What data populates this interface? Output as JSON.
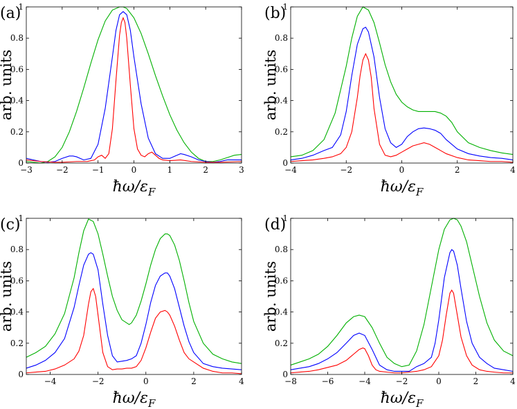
{
  "chart_data": [
    {
      "type": "line",
      "panel": "(a)",
      "xlabel": "ħω/ε_F",
      "ylabel": "arb. units",
      "xlim": [
        -3,
        3
      ],
      "ylim": [
        0,
        1
      ],
      "xticks": [
        "−3",
        "−2",
        "−1",
        "0",
        "1",
        "2",
        "3"
      ],
      "yticks": [
        "0",
        "0.2",
        "0.4",
        "0.6",
        "0.8",
        "1"
      ],
      "grid": false,
      "series": [
        {
          "color": "#00b000",
          "x": [
            -3,
            -2.8,
            -2.6,
            -2.4,
            -2.2,
            -2.0,
            -1.8,
            -1.6,
            -1.4,
            -1.2,
            -1.0,
            -0.8,
            -0.6,
            -0.4,
            -0.3,
            -0.2,
            0,
            0.2,
            0.4,
            0.6,
            0.8,
            1.0,
            1.2,
            1.4,
            1.6,
            1.8,
            2.0,
            2.2,
            2.4,
            2.6,
            2.8,
            3.0
          ],
          "y": [
            0.01,
            0.005,
            0.0,
            0.01,
            0.04,
            0.1,
            0.2,
            0.33,
            0.48,
            0.64,
            0.79,
            0.91,
            0.98,
            1.0,
            1.0,
            0.99,
            0.93,
            0.83,
            0.7,
            0.56,
            0.43,
            0.31,
            0.21,
            0.13,
            0.07,
            0.03,
            0.01,
            0.01,
            0.02,
            0.035,
            0.05,
            0.055
          ]
        },
        {
          "color": "#0000ff",
          "x": [
            -3,
            -2.8,
            -2.6,
            -2.4,
            -2.2,
            -2.0,
            -1.8,
            -1.7,
            -1.6,
            -1.4,
            -1.2,
            -1.0,
            -0.8,
            -0.6,
            -0.5,
            -0.4,
            -0.3,
            -0.2,
            -0.1,
            0,
            0.2,
            0.4,
            0.6,
            0.8,
            1.0,
            1.2,
            1.3,
            1.4,
            1.6,
            1.8,
            2.0,
            2.2,
            2.4,
            2.6,
            2.8,
            3.0
          ],
          "y": [
            0.03,
            0.02,
            0.01,
            0.005,
            0.01,
            0.03,
            0.045,
            0.045,
            0.04,
            0.02,
            0.03,
            0.12,
            0.35,
            0.68,
            0.85,
            0.95,
            0.97,
            0.95,
            0.85,
            0.68,
            0.38,
            0.16,
            0.06,
            0.03,
            0.03,
            0.05,
            0.06,
            0.055,
            0.04,
            0.02,
            0.01,
            0.005,
            0.01,
            0.02,
            0.02,
            0.02
          ]
        },
        {
          "color": "#ff0000",
          "x": [
            -3,
            -2.6,
            -2.2,
            -2.0,
            -1.6,
            -1.3,
            -1.1,
            -1.0,
            -0.9,
            -0.8,
            -0.7,
            -0.6,
            -0.5,
            -0.4,
            -0.35,
            -0.3,
            -0.25,
            -0.2,
            -0.1,
            0,
            0.1,
            0.2,
            0.3,
            0.4,
            0.5,
            0.6,
            0.7,
            0.8,
            1.0,
            1.3,
            1.6,
            2.0,
            2.4,
            3.0
          ],
          "y": [
            0.02,
            0.01,
            0.005,
            0.005,
            0.01,
            0.01,
            0.02,
            0.04,
            0.05,
            0.03,
            0.06,
            0.22,
            0.53,
            0.82,
            0.9,
            0.93,
            0.9,
            0.8,
            0.5,
            0.22,
            0.09,
            0.05,
            0.04,
            0.06,
            0.07,
            0.05,
            0.03,
            0.02,
            0.015,
            0.02,
            0.01,
            0.005,
            0.005,
            0.01
          ]
        }
      ]
    },
    {
      "type": "line",
      "panel": "(b)",
      "xlabel": "ħω/ε_F",
      "ylabel": "arb. units",
      "xlim": [
        -4,
        4
      ],
      "ylim": [
        0,
        1
      ],
      "xticks": [
        "−4",
        "−2",
        "0",
        "2",
        "4"
      ],
      "yticks": [
        "0",
        "0.2",
        "0.4",
        "0.6",
        "0.8",
        "1"
      ],
      "grid": false,
      "series": [
        {
          "color": "#00b000",
          "x": [
            -4,
            -3.6,
            -3.2,
            -2.8,
            -2.4,
            -2.0,
            -1.8,
            -1.6,
            -1.4,
            -1.2,
            -1.0,
            -0.8,
            -0.6,
            -0.4,
            -0.2,
            0,
            0.2,
            0.4,
            0.6,
            0.8,
            1.0,
            1.2,
            1.4,
            1.6,
            1.8,
            2.0,
            2.4,
            2.8,
            3.2,
            3.6,
            4.0
          ],
          "y": [
            0.04,
            0.05,
            0.08,
            0.15,
            0.32,
            0.62,
            0.8,
            0.94,
            1.0,
            0.98,
            0.9,
            0.77,
            0.63,
            0.52,
            0.44,
            0.39,
            0.36,
            0.34,
            0.33,
            0.33,
            0.33,
            0.33,
            0.32,
            0.3,
            0.26,
            0.2,
            0.13,
            0.1,
            0.08,
            0.065,
            0.055
          ]
        },
        {
          "color": "#0000ff",
          "x": [
            -4,
            -3.6,
            -3.2,
            -2.8,
            -2.5,
            -2.2,
            -2.0,
            -1.8,
            -1.6,
            -1.4,
            -1.3,
            -1.2,
            -1.0,
            -0.8,
            -0.6,
            -0.4,
            -0.2,
            0,
            0.2,
            0.4,
            0.6,
            0.8,
            1.0,
            1.2,
            1.4,
            1.6,
            2.0,
            2.4,
            2.8,
            3.2,
            3.6,
            4.0
          ],
          "y": [
            0.02,
            0.03,
            0.05,
            0.08,
            0.1,
            0.18,
            0.33,
            0.56,
            0.76,
            0.86,
            0.87,
            0.84,
            0.68,
            0.42,
            0.22,
            0.13,
            0.1,
            0.12,
            0.17,
            0.2,
            0.22,
            0.225,
            0.22,
            0.21,
            0.19,
            0.15,
            0.09,
            0.06,
            0.045,
            0.035,
            0.03,
            0.02
          ]
        },
        {
          "color": "#ff0000",
          "x": [
            -4,
            -3.6,
            -3.2,
            -2.8,
            -2.5,
            -2.2,
            -2.0,
            -1.8,
            -1.6,
            -1.5,
            -1.4,
            -1.3,
            -1.2,
            -1.1,
            -1.0,
            -0.8,
            -0.6,
            -0.4,
            -0.2,
            0,
            0.2,
            0.4,
            0.6,
            0.8,
            1.0,
            1.2,
            1.4,
            1.6,
            2.0,
            2.4,
            2.8,
            3.2,
            3.6,
            4.0
          ],
          "y": [
            0.01,
            0.015,
            0.02,
            0.03,
            0.04,
            0.06,
            0.1,
            0.2,
            0.42,
            0.56,
            0.66,
            0.7,
            0.66,
            0.55,
            0.35,
            0.12,
            0.05,
            0.04,
            0.05,
            0.07,
            0.09,
            0.11,
            0.12,
            0.13,
            0.12,
            0.1,
            0.08,
            0.06,
            0.035,
            0.02,
            0.015,
            0.01,
            0.01,
            0.005
          ]
        }
      ]
    },
    {
      "type": "line",
      "panel": "(c)",
      "xlabel": "ħω/ε_F",
      "ylabel": "arb. units",
      "xlim": [
        -5,
        4
      ],
      "ylim": [
        0,
        1
      ],
      "xticks": [
        "−4",
        "−2",
        "0",
        "2",
        "4"
      ],
      "yticks": [
        "0",
        "0.2",
        "0.4",
        "0.6",
        "0.8",
        "1"
      ],
      "grid": false,
      "series": [
        {
          "color": "#00b000",
          "x": [
            -5,
            -4.6,
            -4.2,
            -3.8,
            -3.4,
            -3.0,
            -2.8,
            -2.6,
            -2.4,
            -2.2,
            -2.0,
            -1.8,
            -1.6,
            -1.4,
            -1.2,
            -1.0,
            -0.8,
            -0.7,
            -0.6,
            -0.4,
            -0.2,
            0,
            0.2,
            0.4,
            0.6,
            0.8,
            0.9,
            1.0,
            1.2,
            1.4,
            1.6,
            1.8,
            2.0,
            2.4,
            2.8,
            3.2,
            3.6,
            4.0
          ],
          "y": [
            0.11,
            0.14,
            0.18,
            0.26,
            0.39,
            0.62,
            0.78,
            0.92,
            0.995,
            0.98,
            0.9,
            0.77,
            0.63,
            0.5,
            0.41,
            0.35,
            0.33,
            0.32,
            0.33,
            0.38,
            0.47,
            0.58,
            0.7,
            0.8,
            0.87,
            0.9,
            0.9,
            0.89,
            0.83,
            0.73,
            0.6,
            0.46,
            0.34,
            0.2,
            0.13,
            0.1,
            0.08,
            0.07
          ]
        },
        {
          "color": "#0000ff",
          "x": [
            -5,
            -4.6,
            -4.2,
            -3.8,
            -3.4,
            -3.0,
            -2.8,
            -2.6,
            -2.4,
            -2.3,
            -2.2,
            -2.0,
            -1.8,
            -1.6,
            -1.4,
            -1.2,
            -1.0,
            -0.8,
            -0.6,
            -0.4,
            -0.2,
            0,
            0.2,
            0.4,
            0.6,
            0.8,
            0.9,
            1.0,
            1.2,
            1.4,
            1.6,
            1.8,
            2.0,
            2.4,
            2.8,
            3.2,
            3.6,
            4.0
          ],
          "y": [
            0.04,
            0.06,
            0.09,
            0.14,
            0.23,
            0.43,
            0.57,
            0.7,
            0.77,
            0.78,
            0.77,
            0.67,
            0.45,
            0.25,
            0.12,
            0.08,
            0.085,
            0.09,
            0.1,
            0.12,
            0.2,
            0.32,
            0.46,
            0.57,
            0.63,
            0.65,
            0.65,
            0.63,
            0.55,
            0.43,
            0.31,
            0.21,
            0.14,
            0.07,
            0.05,
            0.04,
            0.035,
            0.03
          ]
        },
        {
          "color": "#ff0000",
          "x": [
            -5,
            -4.6,
            -4.2,
            -3.8,
            -3.4,
            -3.0,
            -2.8,
            -2.6,
            -2.4,
            -2.3,
            -2.2,
            -2.1,
            -2.0,
            -1.8,
            -1.6,
            -1.4,
            -1.2,
            -1.0,
            -0.8,
            -0.6,
            -0.4,
            -0.2,
            0,
            0.2,
            0.4,
            0.6,
            0.8,
            0.9,
            1.0,
            1.2,
            1.4,
            1.6,
            1.8,
            2.0,
            2.4,
            2.8,
            3.2,
            3.6,
            4.0
          ],
          "y": [
            0.01,
            0.015,
            0.02,
            0.035,
            0.06,
            0.1,
            0.15,
            0.25,
            0.45,
            0.53,
            0.55,
            0.5,
            0.38,
            0.14,
            0.05,
            0.03,
            0.035,
            0.035,
            0.04,
            0.04,
            0.05,
            0.09,
            0.17,
            0.27,
            0.36,
            0.4,
            0.41,
            0.4,
            0.38,
            0.31,
            0.22,
            0.14,
            0.1,
            0.08,
            0.04,
            0.02,
            0.01,
            0.01,
            0.005
          ]
        }
      ]
    },
    {
      "type": "line",
      "panel": "(d)",
      "xlabel": "ħω/ε_F",
      "ylabel": "arb. units",
      "xlim": [
        -8,
        4
      ],
      "ylim": [
        0,
        1
      ],
      "xticks": [
        "−8",
        "−6",
        "−4",
        "−2",
        "0",
        "2",
        "4"
      ],
      "yticks": [
        "0",
        "0.2",
        "0.4",
        "0.6",
        "0.8",
        "1"
      ],
      "grid": false,
      "series": [
        {
          "color": "#00b000",
          "x": [
            -8,
            -7.5,
            -7,
            -6.5,
            -6,
            -5.5,
            -5,
            -4.6,
            -4.3,
            -4.0,
            -3.6,
            -3.2,
            -2.8,
            -2.4,
            -2.0,
            -1.6,
            -1.2,
            -0.8,
            -0.4,
            0,
            0.3,
            0.6,
            0.8,
            1.0,
            1.2,
            1.5,
            1.8,
            2.2,
            2.6,
            3.0,
            3.5,
            4.0
          ],
          "y": [
            0.06,
            0.08,
            0.1,
            0.13,
            0.18,
            0.25,
            0.33,
            0.37,
            0.38,
            0.37,
            0.3,
            0.2,
            0.11,
            0.07,
            0.05,
            0.06,
            0.15,
            0.32,
            0.56,
            0.8,
            0.93,
            0.99,
            1.0,
            0.99,
            0.95,
            0.85,
            0.7,
            0.5,
            0.33,
            0.22,
            0.15,
            0.12
          ]
        },
        {
          "color": "#0000ff",
          "x": [
            -8,
            -7.5,
            -7,
            -6.5,
            -6,
            -5.5,
            -5,
            -4.6,
            -4.3,
            -4.0,
            -3.6,
            -3.2,
            -2.8,
            -2.4,
            -2.0,
            -1.6,
            -1.2,
            -0.8,
            -0.4,
            -0.2,
            0,
            0.3,
            0.6,
            0.7,
            0.8,
            1.0,
            1.2,
            1.5,
            1.8,
            2.2,
            2.6,
            3.0,
            3.5,
            4.0
          ],
          "y": [
            0.03,
            0.04,
            0.05,
            0.07,
            0.1,
            0.14,
            0.2,
            0.25,
            0.265,
            0.25,
            0.16,
            0.06,
            0.03,
            0.02,
            0.02,
            0.02,
            0.05,
            0.07,
            0.11,
            0.2,
            0.35,
            0.62,
            0.78,
            0.8,
            0.79,
            0.7,
            0.55,
            0.34,
            0.2,
            0.11,
            0.07,
            0.04,
            0.03,
            0.02
          ]
        },
        {
          "color": "#ff0000",
          "x": [
            -8,
            -7.5,
            -7,
            -6.5,
            -6,
            -5.5,
            -5,
            -4.6,
            -4.3,
            -4.1,
            -4.0,
            -3.8,
            -3.6,
            -3.4,
            -3.2,
            -2.8,
            -2.4,
            -2.0,
            -1.6,
            -1.2,
            -0.8,
            -0.4,
            0,
            0.2,
            0.4,
            0.6,
            0.7,
            0.8,
            1.0,
            1.2,
            1.5,
            1.8,
            2.2,
            2.6,
            3.0,
            3.5,
            4.0
          ],
          "y": [
            0.01,
            0.015,
            0.02,
            0.03,
            0.045,
            0.06,
            0.09,
            0.13,
            0.16,
            0.17,
            0.165,
            0.12,
            0.06,
            0.03,
            0.02,
            0.015,
            0.01,
            0.01,
            0.015,
            0.02,
            0.03,
            0.05,
            0.12,
            0.22,
            0.38,
            0.52,
            0.54,
            0.52,
            0.38,
            0.24,
            0.12,
            0.06,
            0.03,
            0.02,
            0.015,
            0.01,
            0.01
          ]
        }
      ]
    }
  ]
}
